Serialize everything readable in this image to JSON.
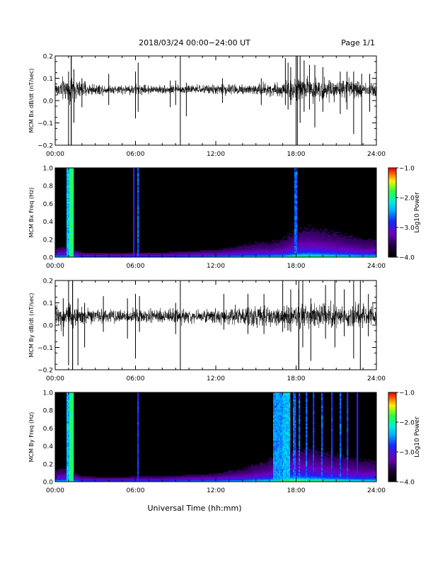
{
  "header": {
    "title": "2018/03/24  00:00−24:00 UT",
    "page": "Page 1/1"
  },
  "xlabel": "Universal Time (hh:mm)",
  "chart_data": [
    {
      "type": "line",
      "ylabel": "MCM Bx dB/dt (nT/sec)",
      "xlim": [
        0,
        24
      ],
      "ylim": [
        -0.2,
        0.2
      ],
      "xticks": [
        "00:00",
        "06:00",
        "12:00",
        "18:00",
        "24:00"
      ],
      "yticks": [
        "0.2",
        "0.1",
        "0.0",
        "−0.1",
        "−0.2"
      ],
      "grid": false,
      "baseline": 0.05,
      "envelope": {
        "x": [
          0,
          1,
          2,
          3,
          4,
          5,
          6,
          7,
          8,
          9,
          10,
          11,
          12,
          13,
          14,
          15,
          16,
          17,
          18,
          19,
          20,
          21,
          22,
          23,
          24
        ],
        "amplitude": [
          0.035,
          0.06,
          0.035,
          0.025,
          0.02,
          0.02,
          0.025,
          0.02,
          0.018,
          0.02,
          0.02,
          0.02,
          0.022,
          0.025,
          0.025,
          0.03,
          0.03,
          0.035,
          0.055,
          0.055,
          0.05,
          0.045,
          0.04,
          0.04,
          0.04
        ]
      },
      "spikes": [
        {
          "x": 1.0,
          "ymin": -0.22,
          "ymax": 0.13
        },
        {
          "x": 1.2,
          "ymin": -0.22,
          "ymax": 0.22
        },
        {
          "x": 1.4,
          "ymin": -0.1,
          "ymax": 0.14
        },
        {
          "x": 2.0,
          "ymin": -0.03,
          "ymax": 0.1
        },
        {
          "x": 4.0,
          "ymin": -0.02,
          "ymax": 0.12
        },
        {
          "x": 6.0,
          "ymin": -0.08,
          "ymax": 0.13
        },
        {
          "x": 6.2,
          "ymin": -0.05,
          "ymax": 0.17
        },
        {
          "x": 8.6,
          "ymin": -0.03,
          "ymax": 0.09
        },
        {
          "x": 9.0,
          "ymin": -0.02,
          "ymax": 0.09
        },
        {
          "x": 9.8,
          "ymin": -0.07,
          "ymax": 0.08
        },
        {
          "x": 12.5,
          "ymin": -0.01,
          "ymax": 0.1
        },
        {
          "x": 15.4,
          "ymin": -0.02,
          "ymax": 0.1
        },
        {
          "x": 17.2,
          "ymin": -0.02,
          "ymax": 0.19
        },
        {
          "x": 17.4,
          "ymin": -0.04,
          "ymax": 0.17
        },
        {
          "x": 17.6,
          "ymin": -0.02,
          "ymax": 0.15
        },
        {
          "x": 18.0,
          "ymin": -0.22,
          "ymax": 0.22
        },
        {
          "x": 18.3,
          "ymin": -0.1,
          "ymax": 0.22
        },
        {
          "x": 18.6,
          "ymin": -0.05,
          "ymax": 0.18
        },
        {
          "x": 19.0,
          "ymin": -0.04,
          "ymax": 0.16
        },
        {
          "x": 19.4,
          "ymin": -0.12,
          "ymax": 0.16
        },
        {
          "x": 20.0,
          "ymin": -0.05,
          "ymax": 0.15
        },
        {
          "x": 21.3,
          "ymin": -0.06,
          "ymax": 0.13
        },
        {
          "x": 21.8,
          "ymin": -0.04,
          "ymax": 0.13
        },
        {
          "x": 22.3,
          "ymin": -0.15,
          "ymax": 0.13
        },
        {
          "x": 22.9,
          "ymin": -0.2,
          "ymax": 0.12
        },
        {
          "x": 23.5,
          "ymin": -0.05,
          "ymax": 0.12
        }
      ],
      "vlines": [
        1.2,
        9.35,
        18.0,
        18.1
      ]
    },
    {
      "type": "heatmap",
      "ylabel": "MCM Bx Freq (Hz)",
      "xlim": [
        0,
        24
      ],
      "ylim": [
        0,
        1.0
      ],
      "xticks": [
        "00:00",
        "06:00",
        "12:00",
        "18:00",
        "24:00"
      ],
      "yticks": [
        "1.0",
        "0.8",
        "0.6",
        "0.4",
        "0.2",
        "0.0"
      ],
      "colorbar": {
        "label": "Log10 Power",
        "range": [
          -4.0,
          -1.0
        ],
        "ticks": [
          "−1.0",
          "−2.0",
          "−3.0",
          "−4.0"
        ]
      },
      "activity": {
        "x": [
          0,
          1,
          2,
          3,
          4,
          5,
          6,
          7,
          8,
          9,
          10,
          11,
          12,
          13,
          14,
          15,
          16,
          17,
          18,
          19,
          20,
          21,
          22,
          23,
          24
        ],
        "level": [
          0.25,
          0.3,
          0.1,
          0.08,
          0.06,
          0.05,
          0.1,
          0.1,
          0.08,
          0.12,
          0.15,
          0.18,
          0.2,
          0.25,
          0.3,
          0.35,
          0.35,
          0.4,
          0.55,
          0.6,
          0.55,
          0.5,
          0.45,
          0.4,
          0.4
        ]
      },
      "bands": [
        {
          "x0": 0.8,
          "x1": 1.05,
          "intensity": 0.55
        },
        {
          "x0": 1.1,
          "x1": 1.35,
          "intensity": 0.7
        },
        {
          "x0": 5.8,
          "x1": 5.9,
          "intensity": 0.35
        },
        {
          "x0": 6.15,
          "x1": 6.25,
          "intensity": 0.45
        },
        {
          "x0": 17.9,
          "x1": 18.05,
          "intensity": 0.45
        }
      ]
    },
    {
      "type": "line",
      "ylabel": "MCM By dB/dt (nT/sec)",
      "xlim": [
        0,
        24
      ],
      "ylim": [
        -0.2,
        0.2
      ],
      "xticks": [
        "00:00",
        "06:00",
        "12:00",
        "18:00",
        "24:00"
      ],
      "yticks": [
        "0.2",
        "0.1",
        "0.0",
        "−0.1",
        "−0.2"
      ],
      "grid": false,
      "baseline": 0.04,
      "envelope": {
        "x": [
          0,
          1,
          2,
          3,
          4,
          5,
          6,
          7,
          8,
          9,
          10,
          11,
          12,
          13,
          14,
          15,
          16,
          17,
          18,
          19,
          20,
          21,
          22,
          23,
          24
        ],
        "amplitude": [
          0.045,
          0.06,
          0.04,
          0.03,
          0.03,
          0.03,
          0.035,
          0.03,
          0.03,
          0.03,
          0.03,
          0.03,
          0.035,
          0.04,
          0.045,
          0.05,
          0.05,
          0.055,
          0.06,
          0.06,
          0.06,
          0.055,
          0.05,
          0.05,
          0.05
        ]
      },
      "spikes": [
        {
          "x": 0.6,
          "ymin": -0.05,
          "ymax": 0.12
        },
        {
          "x": 1.0,
          "ymin": -0.18,
          "ymax": 0.2
        },
        {
          "x": 1.3,
          "ymin": -0.22,
          "ymax": 0.22
        },
        {
          "x": 1.7,
          "ymin": -0.18,
          "ymax": 0.12
        },
        {
          "x": 2.2,
          "ymin": -0.1,
          "ymax": 0.1
        },
        {
          "x": 3.6,
          "ymin": -0.03,
          "ymax": 0.13
        },
        {
          "x": 5.4,
          "ymin": -0.06,
          "ymax": 0.12
        },
        {
          "x": 6.0,
          "ymin": -0.15,
          "ymax": 0.14
        },
        {
          "x": 6.3,
          "ymin": -0.03,
          "ymax": 0.13
        },
        {
          "x": 9.0,
          "ymin": -0.04,
          "ymax": 0.1
        },
        {
          "x": 12.6,
          "ymin": -0.02,
          "ymax": 0.14
        },
        {
          "x": 14.4,
          "ymin": -0.04,
          "ymax": 0.14
        },
        {
          "x": 15.6,
          "ymin": -0.04,
          "ymax": 0.14
        },
        {
          "x": 17.0,
          "ymin": -0.03,
          "ymax": 0.19
        },
        {
          "x": 17.6,
          "ymin": -0.03,
          "ymax": 0.16
        },
        {
          "x": 18.2,
          "ymin": -0.22,
          "ymax": 0.16
        },
        {
          "x": 18.5,
          "ymin": -0.1,
          "ymax": 0.2
        },
        {
          "x": 19.1,
          "ymin": -0.16,
          "ymax": 0.12
        },
        {
          "x": 20.2,
          "ymin": -0.06,
          "ymax": 0.18
        },
        {
          "x": 20.9,
          "ymin": -0.1,
          "ymax": 0.2
        },
        {
          "x": 21.6,
          "ymin": -0.05,
          "ymax": 0.16
        },
        {
          "x": 22.3,
          "ymin": -0.15,
          "ymax": 0.2
        },
        {
          "x": 22.8,
          "ymin": -0.22,
          "ymax": 0.2
        },
        {
          "x": 23.4,
          "ymin": -0.05,
          "ymax": 0.14
        }
      ],
      "vlines": [
        1.3,
        9.35,
        18.2
      ]
    },
    {
      "type": "heatmap",
      "ylabel": "MCM By Freq (Hz)",
      "xlim": [
        0,
        24
      ],
      "ylim": [
        0,
        1.0
      ],
      "xticks": [
        "00:00",
        "06:00",
        "12:00",
        "18:00",
        "24:00"
      ],
      "yticks": [
        "1.0",
        "0.8",
        "0.6",
        "0.4",
        "0.2",
        "0.0"
      ],
      "colorbar": {
        "label": "Log10 Power",
        "range": [
          -4.0,
          -1.0
        ],
        "ticks": [
          "−1.0",
          "−2.0",
          "−3.0",
          "−4.0"
        ]
      },
      "activity": {
        "x": [
          0,
          1,
          2,
          3,
          4,
          5,
          6,
          7,
          8,
          9,
          10,
          11,
          12,
          13,
          14,
          15,
          16,
          17,
          18,
          19,
          20,
          21,
          22,
          23,
          24
        ],
        "level": [
          0.3,
          0.35,
          0.12,
          0.1,
          0.08,
          0.08,
          0.12,
          0.12,
          0.1,
          0.15,
          0.18,
          0.2,
          0.22,
          0.28,
          0.32,
          0.4,
          0.45,
          0.65,
          0.7,
          0.65,
          0.6,
          0.55,
          0.5,
          0.45,
          0.45
        ]
      },
      "bands": [
        {
          "x0": 0.8,
          "x1": 1.05,
          "intensity": 0.55
        },
        {
          "x0": 1.1,
          "x1": 1.35,
          "intensity": 0.7
        },
        {
          "x0": 6.15,
          "x1": 6.25,
          "intensity": 0.4
        },
        {
          "x0": 16.3,
          "x1": 17.0,
          "intensity": 0.5
        },
        {
          "x0": 17.0,
          "x1": 17.6,
          "intensity": 0.55
        },
        {
          "x0": 17.8,
          "x1": 17.95,
          "intensity": 0.45
        },
        {
          "x0": 18.2,
          "x1": 18.3,
          "intensity": 0.45
        },
        {
          "x0": 18.7,
          "x1": 18.8,
          "intensity": 0.45
        },
        {
          "x0": 19.2,
          "x1": 19.3,
          "intensity": 0.4
        },
        {
          "x0": 19.9,
          "x1": 20.0,
          "intensity": 0.45
        },
        {
          "x0": 20.6,
          "x1": 20.7,
          "intensity": 0.4
        },
        {
          "x0": 21.3,
          "x1": 21.4,
          "intensity": 0.45
        },
        {
          "x0": 21.8,
          "x1": 21.9,
          "intensity": 0.4
        },
        {
          "x0": 22.5,
          "x1": 22.6,
          "intensity": 0.35
        }
      ]
    }
  ]
}
